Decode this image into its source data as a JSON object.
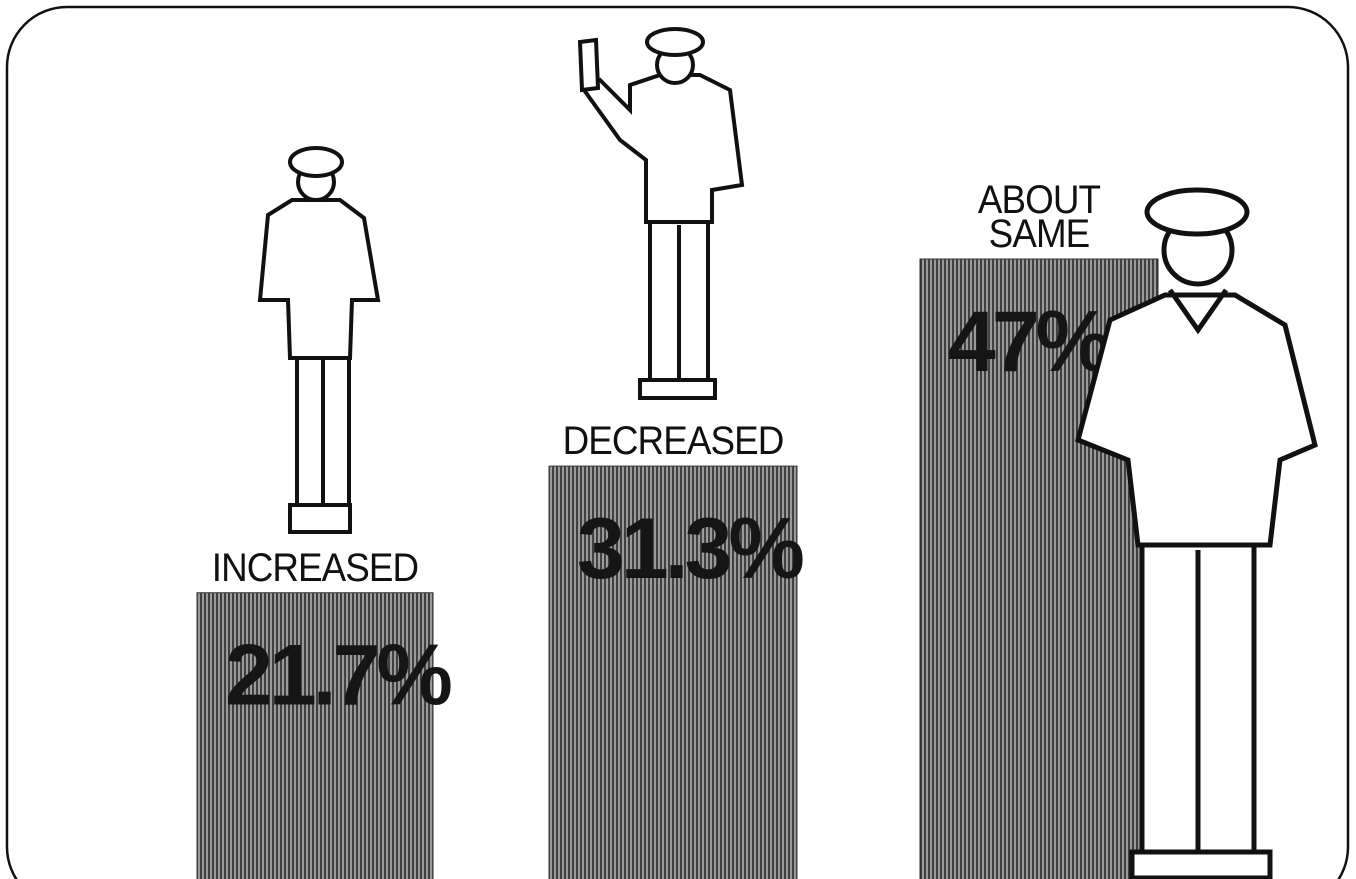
{
  "chart_data": {
    "type": "bar",
    "categories": [
      "INCREASED",
      "DECREASED",
      "ABOUT SAME"
    ],
    "values": [
      21.7,
      31.3,
      47
    ],
    "value_labels": [
      "21.7%",
      "31.3%",
      "47%"
    ],
    "color": "#9a9a9a"
  }
}
